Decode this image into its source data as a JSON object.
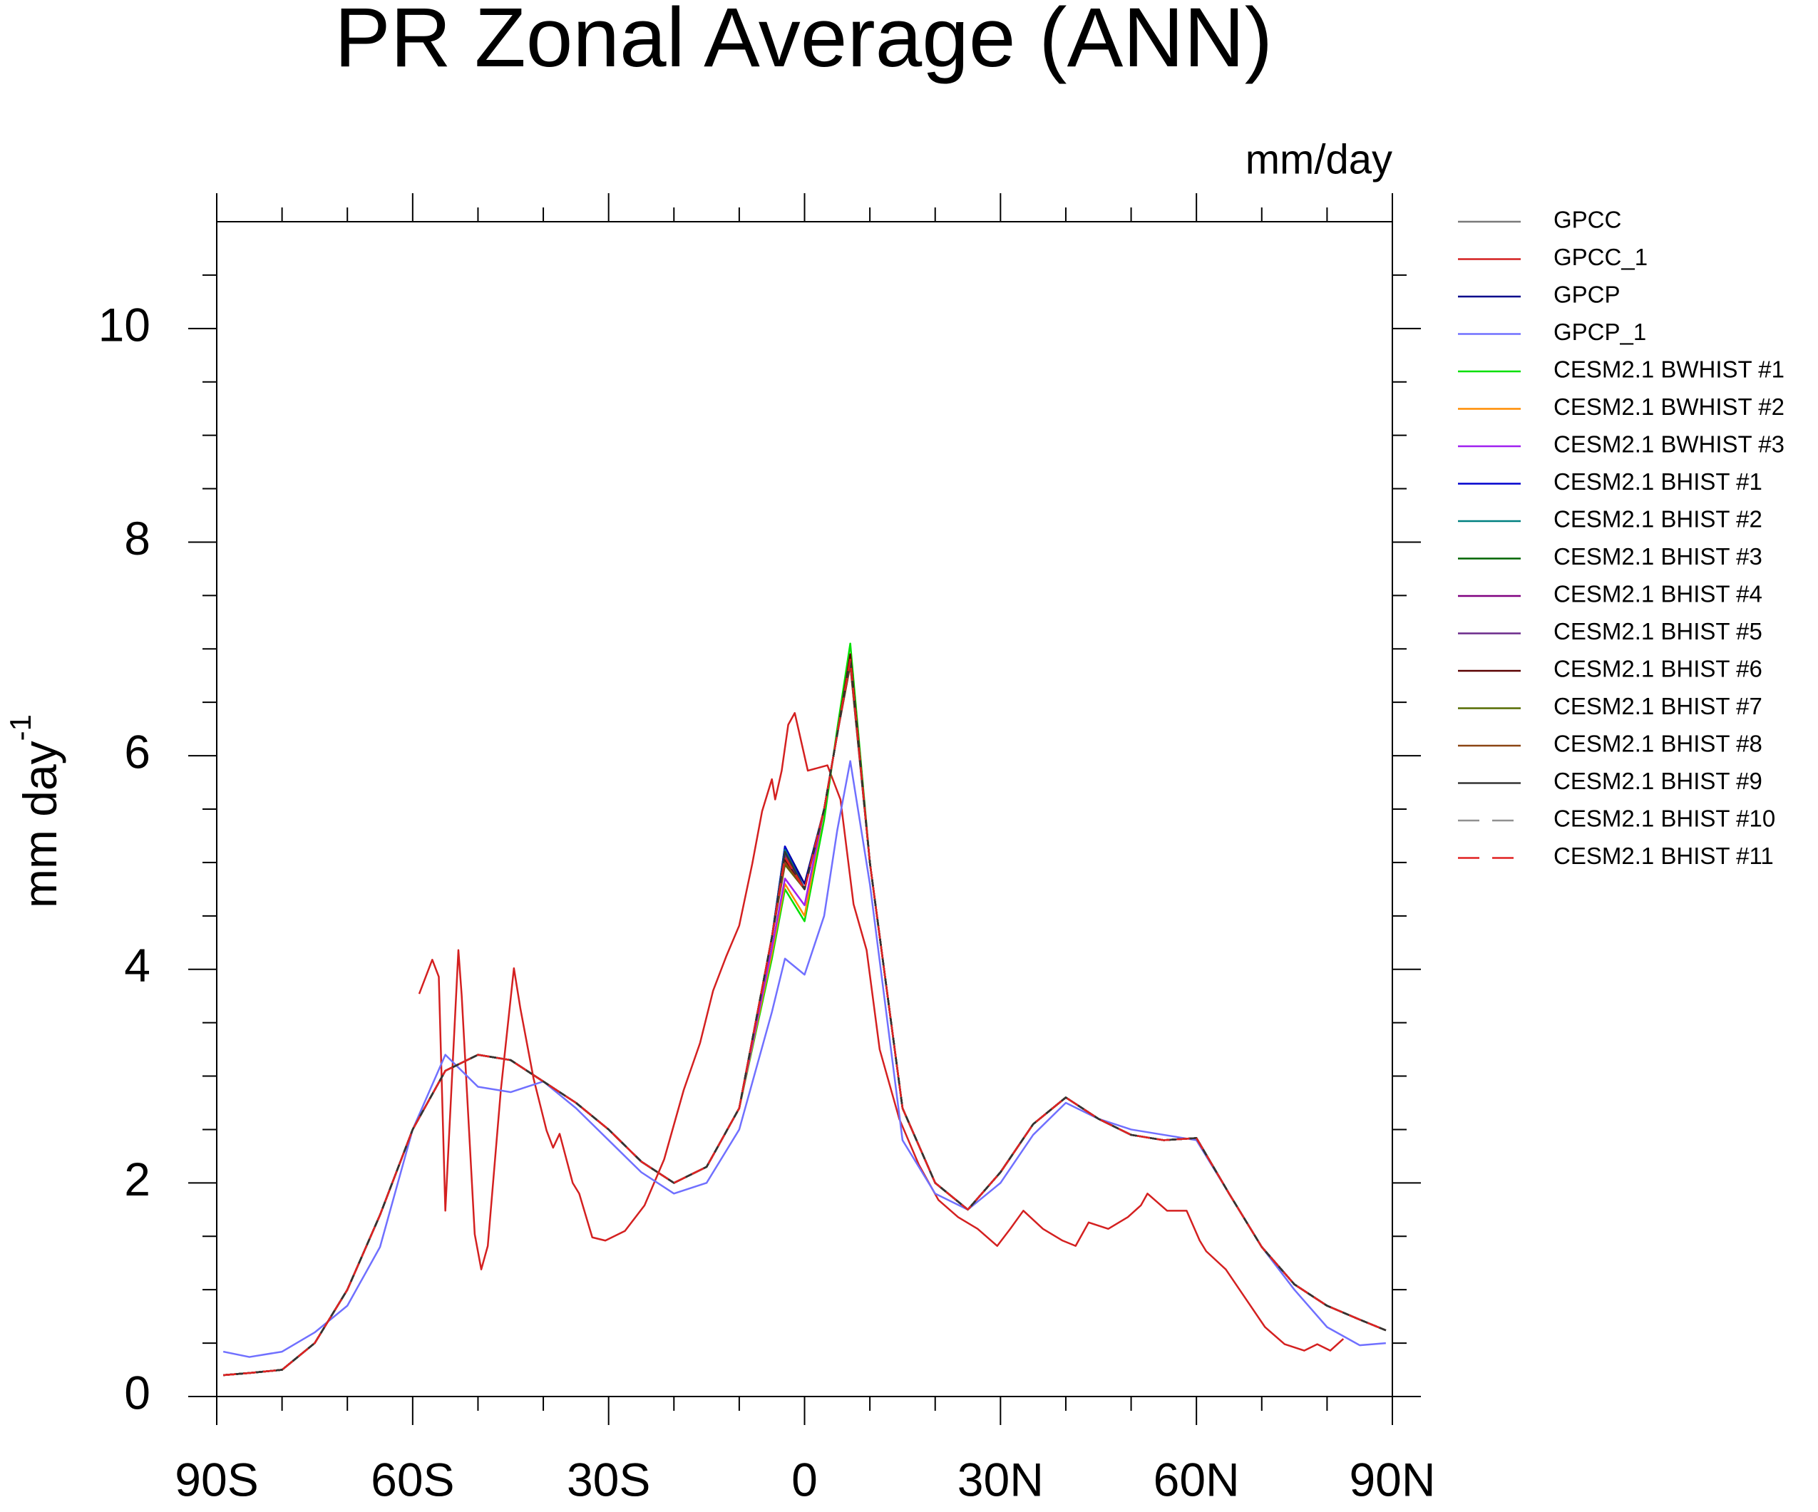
{
  "chart_data": {
    "type": "line",
    "title": "PR Zonal Average (ANN)",
    "units": "mm/day",
    "ylabel": {
      "text": "mm day",
      "superscript": "-1"
    },
    "x": [
      -89,
      -85,
      -80,
      -75,
      -70,
      -65,
      -60,
      -55,
      -50,
      -45,
      -40,
      -35,
      -30,
      -25,
      -20,
      -15,
      -10,
      -5,
      -3,
      0,
      3,
      5,
      7,
      10,
      15,
      20,
      25,
      30,
      35,
      40,
      45,
      50,
      55,
      60,
      65,
      70,
      75,
      80,
      85,
      89
    ],
    "xlim": [
      -90,
      90
    ],
    "xticks": [
      {
        "value": -90,
        "label": "90S"
      },
      {
        "value": -60,
        "label": "60S"
      },
      {
        "value": -30,
        "label": "30S"
      },
      0,
      {
        "value": 30,
        "label": "30N"
      },
      {
        "value": 60,
        "label": "60N"
      },
      {
        "value": 90,
        "label": "90N"
      }
    ],
    "xminorticks": [
      -80,
      -70,
      -50,
      -40,
      -20,
      -10,
      10,
      20,
      40,
      50,
      70,
      80
    ],
    "ylim": [
      0,
      11
    ],
    "yticks": [
      0,
      2,
      4,
      6,
      8,
      10
    ],
    "yminorticks": [
      0.5,
      1,
      1.5,
      2.5,
      3,
      3.5,
      4.5,
      5,
      5.5,
      6.5,
      7,
      7.5,
      8.5,
      9,
      9.5,
      10.5
    ],
    "series": [
      {
        "name": "GPCC",
        "color": "#7a7a7a",
        "values": [
          0.2,
          0.22,
          0.25,
          0.5,
          1.0,
          1.7,
          2.5,
          3.05,
          3.2,
          3.15,
          2.95,
          2.75,
          2.5,
          2.2,
          2.0,
          2.15,
          2.7,
          4.3,
          5.1,
          4.75,
          5.5,
          6.2,
          6.9,
          5.0,
          2.7,
          2.0,
          1.75,
          2.1,
          2.55,
          2.8,
          2.6,
          2.45,
          2.4,
          2.42,
          1.9,
          1.4,
          1.05,
          0.85,
          0.72,
          0.62
        ]
      },
      {
        "name": "GPCC_1",
        "color": "#d42020",
        "x": [
          -59,
          -57,
          -56,
          -55,
          -53,
          -52.5,
          -50.5,
          -49.5,
          -48.5,
          -46.5,
          -44.5,
          -43.5,
          -41.5,
          -39.5,
          -38.5,
          -37.5,
          -35.5,
          -34.5,
          -32.5,
          -30.5,
          -27.5,
          -24.5,
          -21.5,
          -18.5,
          -16,
          -14,
          -12,
          -10,
          -8,
          -6.5,
          -5,
          -4.5,
          -3.5,
          -2.5,
          -1.5,
          0.5,
          3.5,
          5.5,
          7.5,
          9.5,
          11.5,
          14.5,
          17.5,
          20.5,
          23.5,
          26.5,
          29.5,
          31.5,
          33.5,
          36.5,
          39.5,
          41.5,
          43.5,
          46.5,
          49.5,
          51.5,
          52.5,
          55.5,
          58.5,
          60.5,
          61.5,
          64.5,
          67.5,
          70.5,
          73.5,
          76.5,
          78.5,
          80.5,
          82.5
        ],
        "values": [
          3.77,
          4.09,
          3.93,
          1.74,
          4.18,
          3.76,
          1.52,
          1.19,
          1.41,
          2.87,
          4.01,
          3.63,
          2.98,
          2.49,
          2.33,
          2.46,
          2.0,
          1.9,
          1.49,
          1.46,
          1.55,
          1.79,
          2.22,
          2.87,
          3.31,
          3.8,
          4.12,
          4.41,
          4.99,
          5.48,
          5.78,
          5.59,
          5.86,
          6.29,
          6.4,
          5.86,
          5.91,
          5.59,
          4.61,
          4.18,
          3.25,
          2.6,
          2.17,
          1.84,
          1.68,
          1.57,
          1.41,
          1.57,
          1.74,
          1.57,
          1.46,
          1.41,
          1.63,
          1.57,
          1.68,
          1.79,
          1.9,
          1.74,
          1.74,
          1.46,
          1.36,
          1.19,
          0.92,
          0.65,
          0.49,
          0.43,
          0.49,
          0.43,
          0.54
        ]
      },
      {
        "name": "GPCP",
        "color": "#00008b",
        "values": [
          0.2,
          0.22,
          0.25,
          0.5,
          1.0,
          1.7,
          2.5,
          3.05,
          3.2,
          3.15,
          2.95,
          2.75,
          2.5,
          2.2,
          2.0,
          2.15,
          2.7,
          4.3,
          5.15,
          4.8,
          5.5,
          6.2,
          6.9,
          5.0,
          2.7,
          2.0,
          1.75,
          2.1,
          2.55,
          2.8,
          2.6,
          2.45,
          2.4,
          2.42,
          1.9,
          1.4,
          1.05,
          0.85,
          0.72,
          0.62
        ]
      },
      {
        "name": "GPCP_1",
        "color": "#7070ff",
        "values": [
          0.42,
          0.37,
          0.42,
          0.6,
          0.85,
          1.4,
          2.5,
          3.2,
          2.9,
          2.85,
          2.95,
          2.7,
          2.4,
          2.1,
          1.9,
          2.0,
          2.5,
          3.6,
          4.1,
          3.95,
          4.5,
          5.3,
          5.95,
          4.8,
          2.4,
          1.9,
          1.75,
          2.0,
          2.45,
          2.75,
          2.6,
          2.5,
          2.45,
          2.4,
          1.9,
          1.4,
          1.0,
          0.65,
          0.48,
          0.5
        ]
      },
      {
        "name": "CESM2.1 BWHIST #1",
        "color": "#00e000",
        "values": [
          0.2,
          0.22,
          0.25,
          0.5,
          1.0,
          1.7,
          2.5,
          3.05,
          3.2,
          3.15,
          2.95,
          2.75,
          2.5,
          2.2,
          2.0,
          2.15,
          2.7,
          4.1,
          4.75,
          4.45,
          5.4,
          6.25,
          7.05,
          5.0,
          2.7,
          2.0,
          1.75,
          2.1,
          2.55,
          2.8,
          2.6,
          2.45,
          2.4,
          2.42,
          1.9,
          1.4,
          1.05,
          0.85,
          0.72,
          0.62
        ]
      },
      {
        "name": "CESM2.1 BWHIST #2",
        "color": "#ff8c00",
        "values": [
          0.2,
          0.22,
          0.25,
          0.5,
          1.0,
          1.7,
          2.5,
          3.05,
          3.2,
          3.15,
          2.95,
          2.75,
          2.5,
          2.2,
          2.0,
          2.15,
          2.7,
          4.15,
          4.8,
          4.5,
          5.5,
          6.2,
          6.95,
          5.0,
          2.7,
          2.0,
          1.75,
          2.1,
          2.55,
          2.8,
          2.6,
          2.45,
          2.4,
          2.42,
          1.9,
          1.4,
          1.05,
          0.85,
          0.72,
          0.62
        ]
      },
      {
        "name": "CESM2.1 BWHIST #3",
        "color": "#a020f0",
        "values": [
          0.2,
          0.22,
          0.25,
          0.5,
          1.0,
          1.7,
          2.5,
          3.05,
          3.2,
          3.15,
          2.95,
          2.75,
          2.5,
          2.2,
          2.0,
          2.15,
          2.7,
          4.2,
          4.85,
          4.6,
          5.5,
          6.2,
          6.9,
          5.0,
          2.7,
          2.0,
          1.75,
          2.1,
          2.55,
          2.8,
          2.6,
          2.45,
          2.4,
          2.42,
          1.9,
          1.4,
          1.05,
          0.85,
          0.72,
          0.62
        ]
      },
      {
        "name": "CESM2.1 BHIST #1",
        "color": "#0000cd",
        "values": [
          0.2,
          0.22,
          0.25,
          0.5,
          1.0,
          1.7,
          2.5,
          3.05,
          3.2,
          3.15,
          2.95,
          2.75,
          2.5,
          2.2,
          2.0,
          2.15,
          2.7,
          4.3,
          5.15,
          4.75,
          5.5,
          6.2,
          6.9,
          5.0,
          2.7,
          2.0,
          1.75,
          2.1,
          2.55,
          2.8,
          2.6,
          2.45,
          2.4,
          2.42,
          1.9,
          1.4,
          1.05,
          0.85,
          0.72,
          0.62
        ]
      },
      {
        "name": "CESM2.1 BHIST #2",
        "color": "#008080",
        "values": [
          0.2,
          0.22,
          0.25,
          0.5,
          1.0,
          1.7,
          2.5,
          3.05,
          3.2,
          3.15,
          2.95,
          2.75,
          2.5,
          2.2,
          2.0,
          2.15,
          2.7,
          4.3,
          5.12,
          4.75,
          5.5,
          6.2,
          6.9,
          5.0,
          2.7,
          2.0,
          1.75,
          2.1,
          2.55,
          2.8,
          2.6,
          2.45,
          2.4,
          2.42,
          1.9,
          1.4,
          1.05,
          0.85,
          0.72,
          0.62
        ]
      },
      {
        "name": "CESM2.1 BHIST #3",
        "color": "#006400",
        "values": [
          0.2,
          0.22,
          0.25,
          0.5,
          1.0,
          1.7,
          2.5,
          3.05,
          3.2,
          3.15,
          2.95,
          2.75,
          2.5,
          2.2,
          2.0,
          2.15,
          2.7,
          4.3,
          5.0,
          4.75,
          5.5,
          6.2,
          6.9,
          5.0,
          2.7,
          2.0,
          1.75,
          2.1,
          2.55,
          2.8,
          2.6,
          2.45,
          2.4,
          2.42,
          1.9,
          1.4,
          1.05,
          0.85,
          0.72,
          0.62
        ]
      },
      {
        "name": "CESM2.1 BHIST #4",
        "color": "#800080",
        "values": [
          0.2,
          0.22,
          0.25,
          0.5,
          1.0,
          1.7,
          2.5,
          3.05,
          3.2,
          3.15,
          2.95,
          2.75,
          2.5,
          2.2,
          2.0,
          2.15,
          2.7,
          4.3,
          5.05,
          4.75,
          5.5,
          6.2,
          6.85,
          5.0,
          2.7,
          2.0,
          1.75,
          2.1,
          2.55,
          2.8,
          2.6,
          2.45,
          2.4,
          2.42,
          1.9,
          1.4,
          1.05,
          0.85,
          0.72,
          0.62
        ]
      },
      {
        "name": "CESM2.1 BHIST #5",
        "color": "#6b2a8a",
        "values": [
          0.2,
          0.22,
          0.25,
          0.5,
          1.0,
          1.7,
          2.5,
          3.05,
          3.2,
          3.15,
          2.95,
          2.75,
          2.5,
          2.2,
          2.0,
          2.15,
          2.7,
          4.3,
          5.08,
          4.75,
          5.5,
          6.2,
          6.9,
          5.0,
          2.7,
          2.0,
          1.75,
          2.1,
          2.55,
          2.8,
          2.6,
          2.45,
          2.4,
          2.42,
          1.9,
          1.4,
          1.05,
          0.85,
          0.72,
          0.62
        ]
      },
      {
        "name": "CESM2.1 BHIST #6",
        "color": "#5a0000",
        "values": [
          0.2,
          0.22,
          0.25,
          0.5,
          1.0,
          1.7,
          2.5,
          3.05,
          3.2,
          3.15,
          2.95,
          2.75,
          2.5,
          2.2,
          2.0,
          2.15,
          2.7,
          4.3,
          5.02,
          4.75,
          5.5,
          6.2,
          6.95,
          5.0,
          2.7,
          2.0,
          1.75,
          2.1,
          2.55,
          2.8,
          2.6,
          2.45,
          2.4,
          2.42,
          1.9,
          1.4,
          1.05,
          0.85,
          0.72,
          0.62
        ]
      },
      {
        "name": "CESM2.1 BHIST #7",
        "color": "#556b00",
        "values": [
          0.2,
          0.22,
          0.25,
          0.5,
          1.0,
          1.7,
          2.5,
          3.05,
          3.2,
          3.15,
          2.95,
          2.75,
          2.5,
          2.2,
          2.0,
          2.15,
          2.7,
          4.3,
          4.98,
          4.75,
          5.5,
          6.2,
          6.9,
          5.0,
          2.7,
          2.0,
          1.75,
          2.1,
          2.55,
          2.8,
          2.6,
          2.45,
          2.4,
          2.42,
          1.9,
          1.4,
          1.05,
          0.85,
          0.72,
          0.62
        ]
      },
      {
        "name": "CESM2.1 BHIST #8",
        "color": "#8b4513",
        "values": [
          0.2,
          0.22,
          0.25,
          0.5,
          1.0,
          1.7,
          2.5,
          3.05,
          3.2,
          3.15,
          2.95,
          2.75,
          2.5,
          2.2,
          2.0,
          2.15,
          2.7,
          4.3,
          5.0,
          4.75,
          5.5,
          6.2,
          6.85,
          5.0,
          2.7,
          2.0,
          1.75,
          2.1,
          2.55,
          2.8,
          2.6,
          2.45,
          2.4,
          2.42,
          1.9,
          1.4,
          1.05,
          0.85,
          0.72,
          0.62
        ]
      },
      {
        "name": "CESM2.1 BHIST #9",
        "color": "#333333",
        "values": [
          0.2,
          0.22,
          0.25,
          0.5,
          1.0,
          1.7,
          2.5,
          3.05,
          3.2,
          3.15,
          2.95,
          2.75,
          2.5,
          2.2,
          2.0,
          2.15,
          2.7,
          4.3,
          5.1,
          4.75,
          5.5,
          6.2,
          6.9,
          5.0,
          2.7,
          2.0,
          1.75,
          2.1,
          2.55,
          2.8,
          2.6,
          2.45,
          2.4,
          2.42,
          1.9,
          1.4,
          1.05,
          0.85,
          0.72,
          0.62
        ]
      },
      {
        "name": "CESM2.1 BHIST #10",
        "color": "#909090",
        "dashed": true,
        "values": [
          0.2,
          0.22,
          0.25,
          0.5,
          1.0,
          1.7,
          2.5,
          3.05,
          3.2,
          3.15,
          2.95,
          2.75,
          2.5,
          2.2,
          2.0,
          2.15,
          2.7,
          4.3,
          5.05,
          4.75,
          5.5,
          6.2,
          6.9,
          5.0,
          2.7,
          2.0,
          1.75,
          2.1,
          2.55,
          2.8,
          2.6,
          2.45,
          2.4,
          2.42,
          1.9,
          1.4,
          1.05,
          0.85,
          0.72,
          0.62
        ]
      },
      {
        "name": "CESM2.1 BHIST #11",
        "color": "#e02020",
        "dashed": true,
        "values": [
          0.2,
          0.22,
          0.25,
          0.5,
          1.0,
          1.7,
          2.5,
          3.05,
          3.2,
          3.15,
          2.95,
          2.75,
          2.5,
          2.2,
          2.0,
          2.15,
          2.7,
          4.3,
          5.05,
          4.75,
          5.5,
          6.2,
          6.9,
          5.0,
          2.7,
          2.0,
          1.75,
          2.1,
          2.55,
          2.8,
          2.6,
          2.45,
          2.4,
          2.42,
          1.9,
          1.4,
          1.05,
          0.85,
          0.72,
          0.62
        ]
      }
    ]
  }
}
